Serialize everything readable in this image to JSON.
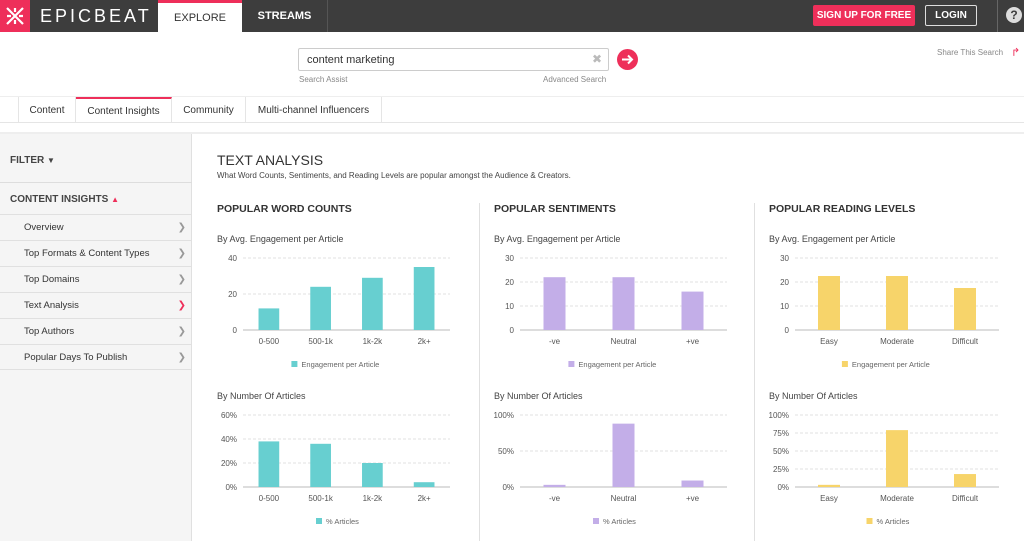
{
  "header": {
    "brand": "EPICBEAT",
    "nav": {
      "explore": "EXPLORE",
      "streams": "STREAMS"
    },
    "signup_label": "SIGN UP FOR FREE",
    "login_label": "LOGIN",
    "help": "?"
  },
  "search": {
    "value": "content marketing",
    "assist": "Search Assist",
    "advanced": "Advanced Search",
    "share": "Share This Search"
  },
  "subtabs": [
    {
      "label": "Content"
    },
    {
      "label": "Content Insights"
    },
    {
      "label": "Community"
    },
    {
      "label": "Multi-channel Influencers"
    }
  ],
  "sidebar": {
    "filter": "FILTER",
    "section": "CONTENT INSIGHTS",
    "items": [
      {
        "label": "Overview"
      },
      {
        "label": "Top Formats & Content Types"
      },
      {
        "label": "Top Domains"
      },
      {
        "label": "Text Analysis"
      },
      {
        "label": "Top Authors"
      },
      {
        "label": "Popular Days To Publish"
      }
    ]
  },
  "main": {
    "title": "TEXT ANALYSIS",
    "subtitle": "What Word Counts, Sentiments, and Reading Levels are popular amongst the Audience & Creators.",
    "sections": [
      {
        "title": "POPULAR WORD COUNTS",
        "engagement_label": "By Avg. Engagement per Article",
        "articles_label": "By Number Of Articles"
      },
      {
        "title": "POPULAR SENTIMENTS",
        "engagement_label": "By Avg. Engagement per Article",
        "articles_label": "By Number Of Articles"
      },
      {
        "title": "POPULAR READING LEVELS",
        "engagement_label": "By Avg. Engagement per Article",
        "articles_label": "By Number Of Articles"
      }
    ]
  },
  "colors": {
    "accent": "#ee2f5a",
    "teal": "#67cfd0",
    "purple": "#c3aee8",
    "yellow": "#f7d46a"
  },
  "chart_data": [
    {
      "type": "bar",
      "categories": [
        "0-500",
        "500-1k",
        "1k-2k",
        "2k+"
      ],
      "series": [
        {
          "name": "Engagement per Article",
          "values": [
            12,
            24,
            29,
            35
          ]
        }
      ],
      "ylim": [
        0,
        40
      ],
      "yticks": [
        "0",
        "20",
        "40"
      ],
      "ytick_values": [
        0,
        20,
        40
      ],
      "color": "#67cfd0"
    },
    {
      "type": "bar",
      "categories": [
        "0-500",
        "500-1k",
        "1k-2k",
        "2k+"
      ],
      "series": [
        {
          "name": "% Articles",
          "values": [
            38,
            36,
            20,
            4
          ]
        }
      ],
      "ylim": [
        0,
        60
      ],
      "yticks": [
        "0%",
        "20%",
        "40%",
        "60%"
      ],
      "ytick_values": [
        0,
        20,
        40,
        60
      ],
      "color": "#67cfd0"
    },
    {
      "type": "bar",
      "categories": [
        "-ve",
        "Neutral",
        "+ve"
      ],
      "series": [
        {
          "name": "Engagement per Article",
          "values": [
            22,
            22,
            16
          ]
        }
      ],
      "ylim": [
        0,
        30
      ],
      "yticks": [
        "0",
        "10",
        "20",
        "30"
      ],
      "ytick_values": [
        0,
        10,
        20,
        30
      ],
      "color": "#c3aee8"
    },
    {
      "type": "bar",
      "categories": [
        "-ve",
        "Neutral",
        "+ve"
      ],
      "series": [
        {
          "name": "% Articles",
          "values": [
            3,
            88,
            9
          ]
        }
      ],
      "ylim": [
        0,
        100
      ],
      "yticks": [
        "0%",
        "50%",
        "100%"
      ],
      "ytick_values": [
        0,
        50,
        100
      ],
      "color": "#c3aee8"
    },
    {
      "type": "bar",
      "categories": [
        "Easy",
        "Moderate",
        "Difficult"
      ],
      "series": [
        {
          "name": "Engagement per Article",
          "values": [
            22.5,
            22.5,
            17.5
          ]
        }
      ],
      "ylim": [
        0,
        30
      ],
      "yticks": [
        "0",
        "10",
        "20",
        "30"
      ],
      "ytick_values": [
        0,
        10,
        20,
        30
      ],
      "color": "#f7d46a"
    },
    {
      "type": "bar",
      "categories": [
        "Easy",
        "Moderate",
        "Difficult"
      ],
      "series": [
        {
          "name": "% Articles",
          "values": [
            3,
            79,
            18
          ]
        }
      ],
      "ylim": [
        0,
        100
      ],
      "yticks": [
        "0%",
        "25%",
        "50%",
        "75%",
        "100%"
      ],
      "ytick_values": [
        0,
        25,
        50,
        75,
        100
      ],
      "color": "#f7d46a"
    }
  ]
}
